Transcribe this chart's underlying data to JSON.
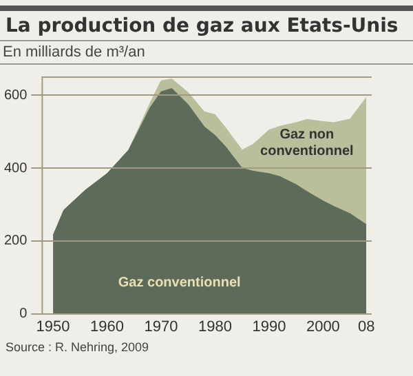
{
  "chart_data": {
    "type": "area",
    "title": "La production de gaz aux Etats-Unis",
    "subtitle": "En milliards de m³/an",
    "annotations": [
      "Source : R. Nehring, 2009"
    ],
    "x": [
      1950,
      1952,
      1956,
      1960,
      1964,
      1968,
      1970,
      1972,
      1975,
      1978,
      1980,
      1982,
      1985,
      1987,
      1990,
      1992,
      1995,
      1997,
      2000,
      2002,
      2005,
      2008
    ],
    "stacked": true,
    "series": [
      {
        "name": "Gaz conventionnel",
        "color": "#5e6b5a",
        "values": [
          215,
          285,
          340,
          385,
          450,
          567,
          610,
          619,
          575,
          514,
          490,
          458,
          400,
          392,
          385,
          377,
          355,
          336,
          310,
          295,
          275,
          245
        ]
      },
      {
        "name": "Gaz non conventionnel",
        "color": "#b8bf9a",
        "values": [
          0,
          0,
          0,
          0,
          0,
          13,
          30,
          26,
          33,
          41,
          57,
          52,
          50,
          73,
          120,
          138,
          170,
          198,
          218,
          230,
          260,
          349
        ]
      }
    ],
    "xlim": [
      1948,
      2009
    ],
    "xticks": [
      1950,
      1960,
      1970,
      1980,
      1990,
      2000,
      {
        "value": 2008,
        "label": "08"
      }
    ],
    "ylim": [
      0,
      650
    ],
    "yticks": [
      0,
      200,
      400,
      600
    ],
    "grid": "y",
    "legend": false
  }
}
